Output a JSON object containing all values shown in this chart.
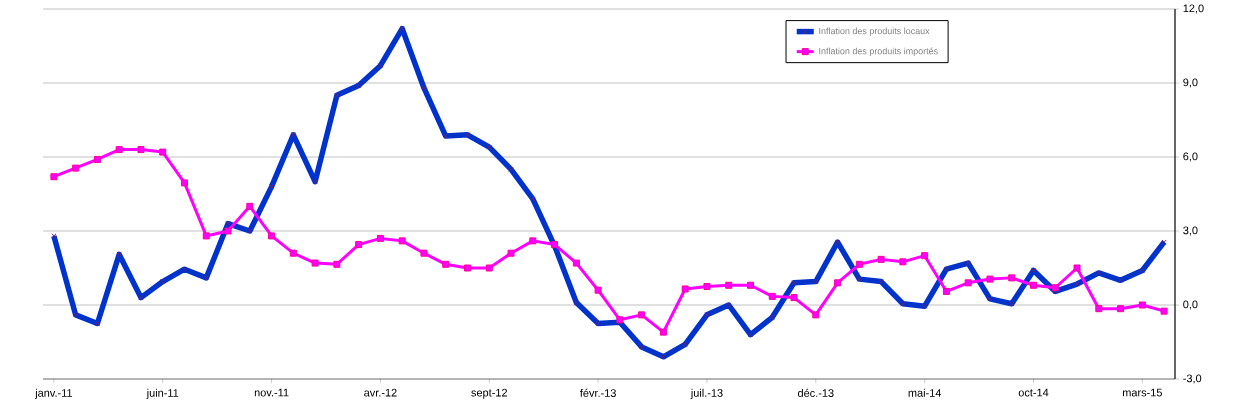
{
  "chart_data": {
    "type": "line",
    "categories": [
      "janv.-11",
      null,
      null,
      null,
      null,
      "juin-11",
      null,
      null,
      null,
      null,
      "nov.-11",
      null,
      null,
      null,
      null,
      "avr.-12",
      null,
      null,
      null,
      null,
      "sept-12",
      null,
      null,
      null,
      null,
      "févr.-13",
      null,
      null,
      null,
      null,
      "juil.-13",
      null,
      null,
      null,
      null,
      "déc.-13",
      null,
      null,
      null,
      null,
      "mai-14",
      null,
      null,
      null,
      null,
      "oct-14",
      null,
      null,
      null,
      null,
      "mars-15",
      null
    ],
    "series": [
      {
        "name": "Inflation des produits locaux",
        "color": "#0033cc",
        "marker": "cross",
        "values": [
          2.8,
          -0.4,
          -0.75,
          2.05,
          0.3,
          0.95,
          1.45,
          1.1,
          3.3,
          3.0,
          4.8,
          6.9,
          5.0,
          8.5,
          8.9,
          9.7,
          11.2,
          8.8,
          6.85,
          6.9,
          6.4,
          5.5,
          4.3,
          2.4,
          0.1,
          -0.75,
          -0.7,
          -1.7,
          -2.1,
          -1.6,
          -0.4,
          0.0,
          -1.2,
          -0.5,
          0.9,
          0.95,
          2.55,
          1.05,
          0.95,
          0.05,
          -0.05,
          1.45,
          1.7,
          0.25,
          0.05,
          1.4,
          0.55,
          0.85,
          1.3,
          1.0,
          1.4,
          2.55
        ]
      },
      {
        "name": "Inflation des produits importés",
        "color": "#ff00ff",
        "marker": "square",
        "values": [
          5.2,
          5.55,
          5.9,
          6.3,
          6.3,
          6.2,
          4.95,
          2.8,
          3.0,
          4.0,
          2.8,
          2.1,
          1.7,
          1.65,
          2.45,
          2.7,
          2.6,
          2.1,
          1.65,
          1.5,
          1.5,
          2.1,
          2.6,
          2.45,
          1.7,
          0.6,
          -0.6,
          -0.4,
          -1.1,
          0.65,
          0.75,
          0.8,
          0.8,
          0.35,
          0.3,
          -0.4,
          0.9,
          1.65,
          1.85,
          1.75,
          2.0,
          0.55,
          0.9,
          1.05,
          1.1,
          0.8,
          0.7,
          1.5,
          -0.15,
          -0.15,
          0.0,
          -0.25
        ]
      }
    ],
    "ylim": [
      -3,
      12
    ],
    "yticks": [
      {
        "value": -3,
        "label": "-3,0"
      },
      {
        "value": 0,
        "label": "0,0"
      },
      {
        "value": 3,
        "label": "3,0"
      },
      {
        "value": 6,
        "label": "6,0"
      },
      {
        "value": 9,
        "label": "9,0"
      },
      {
        "value": 12,
        "label": "12,0"
      }
    ],
    "grid": "y",
    "legend": "top right"
  }
}
